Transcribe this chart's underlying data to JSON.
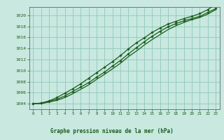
{
  "title": "Graphe pression niveau de la mer (hPa)",
  "bg_color": "#c8e8e0",
  "grid_color": "#90c8b8",
  "line_color": "#1a5c1a",
  "marker_color": "#1a5c1a",
  "xlim": [
    -0.5,
    23.5
  ],
  "ylim": [
    1003.0,
    1021.5
  ],
  "xticks": [
    0,
    1,
    2,
    3,
    4,
    5,
    6,
    7,
    8,
    9,
    10,
    11,
    12,
    13,
    14,
    15,
    16,
    17,
    18,
    19,
    20,
    21,
    22,
    23
  ],
  "yticks": [
    1004,
    1006,
    1008,
    1010,
    1012,
    1014,
    1016,
    1018,
    1020
  ],
  "line1_x": [
    0,
    1,
    2,
    3,
    4,
    5,
    6,
    7,
    8,
    9,
    10,
    11,
    12,
    13,
    14,
    15,
    16,
    17,
    18,
    19,
    20,
    21,
    22,
    23
  ],
  "line1_y": [
    1004.0,
    1004.1,
    1004.4,
    1004.8,
    1005.4,
    1006.2,
    1007.0,
    1007.8,
    1008.8,
    1009.7,
    1010.8,
    1011.8,
    1013.0,
    1014.1,
    1015.2,
    1016.2,
    1017.1,
    1017.9,
    1018.5,
    1019.0,
    1019.4,
    1019.8,
    1020.5,
    1021.2
  ],
  "line2_x": [
    0,
    1,
    2,
    3,
    4,
    5,
    6,
    7,
    8,
    9,
    10,
    11,
    12,
    13,
    14,
    15,
    16,
    17,
    18,
    19,
    20,
    21,
    22,
    23
  ],
  "line2_y": [
    1004.0,
    1004.1,
    1004.5,
    1005.1,
    1005.9,
    1006.7,
    1007.6,
    1008.6,
    1009.6,
    1010.6,
    1011.6,
    1012.7,
    1013.9,
    1015.0,
    1015.9,
    1016.9,
    1017.7,
    1018.4,
    1018.9,
    1019.4,
    1019.8,
    1020.3,
    1021.0,
    1022.0
  ],
  "line3_x": [
    0,
    1,
    2,
    3,
    4,
    5,
    6,
    7,
    8,
    9,
    10,
    11,
    12,
    13,
    14,
    15,
    16,
    17,
    18,
    19,
    20,
    21,
    22,
    23
  ],
  "line3_y": [
    1004.0,
    1004.0,
    1004.3,
    1004.6,
    1005.1,
    1005.8,
    1006.6,
    1007.4,
    1008.4,
    1009.3,
    1010.3,
    1011.3,
    1012.5,
    1013.5,
    1014.6,
    1015.6,
    1016.5,
    1017.4,
    1018.1,
    1018.7,
    1019.2,
    1019.6,
    1020.2,
    1021.0
  ]
}
